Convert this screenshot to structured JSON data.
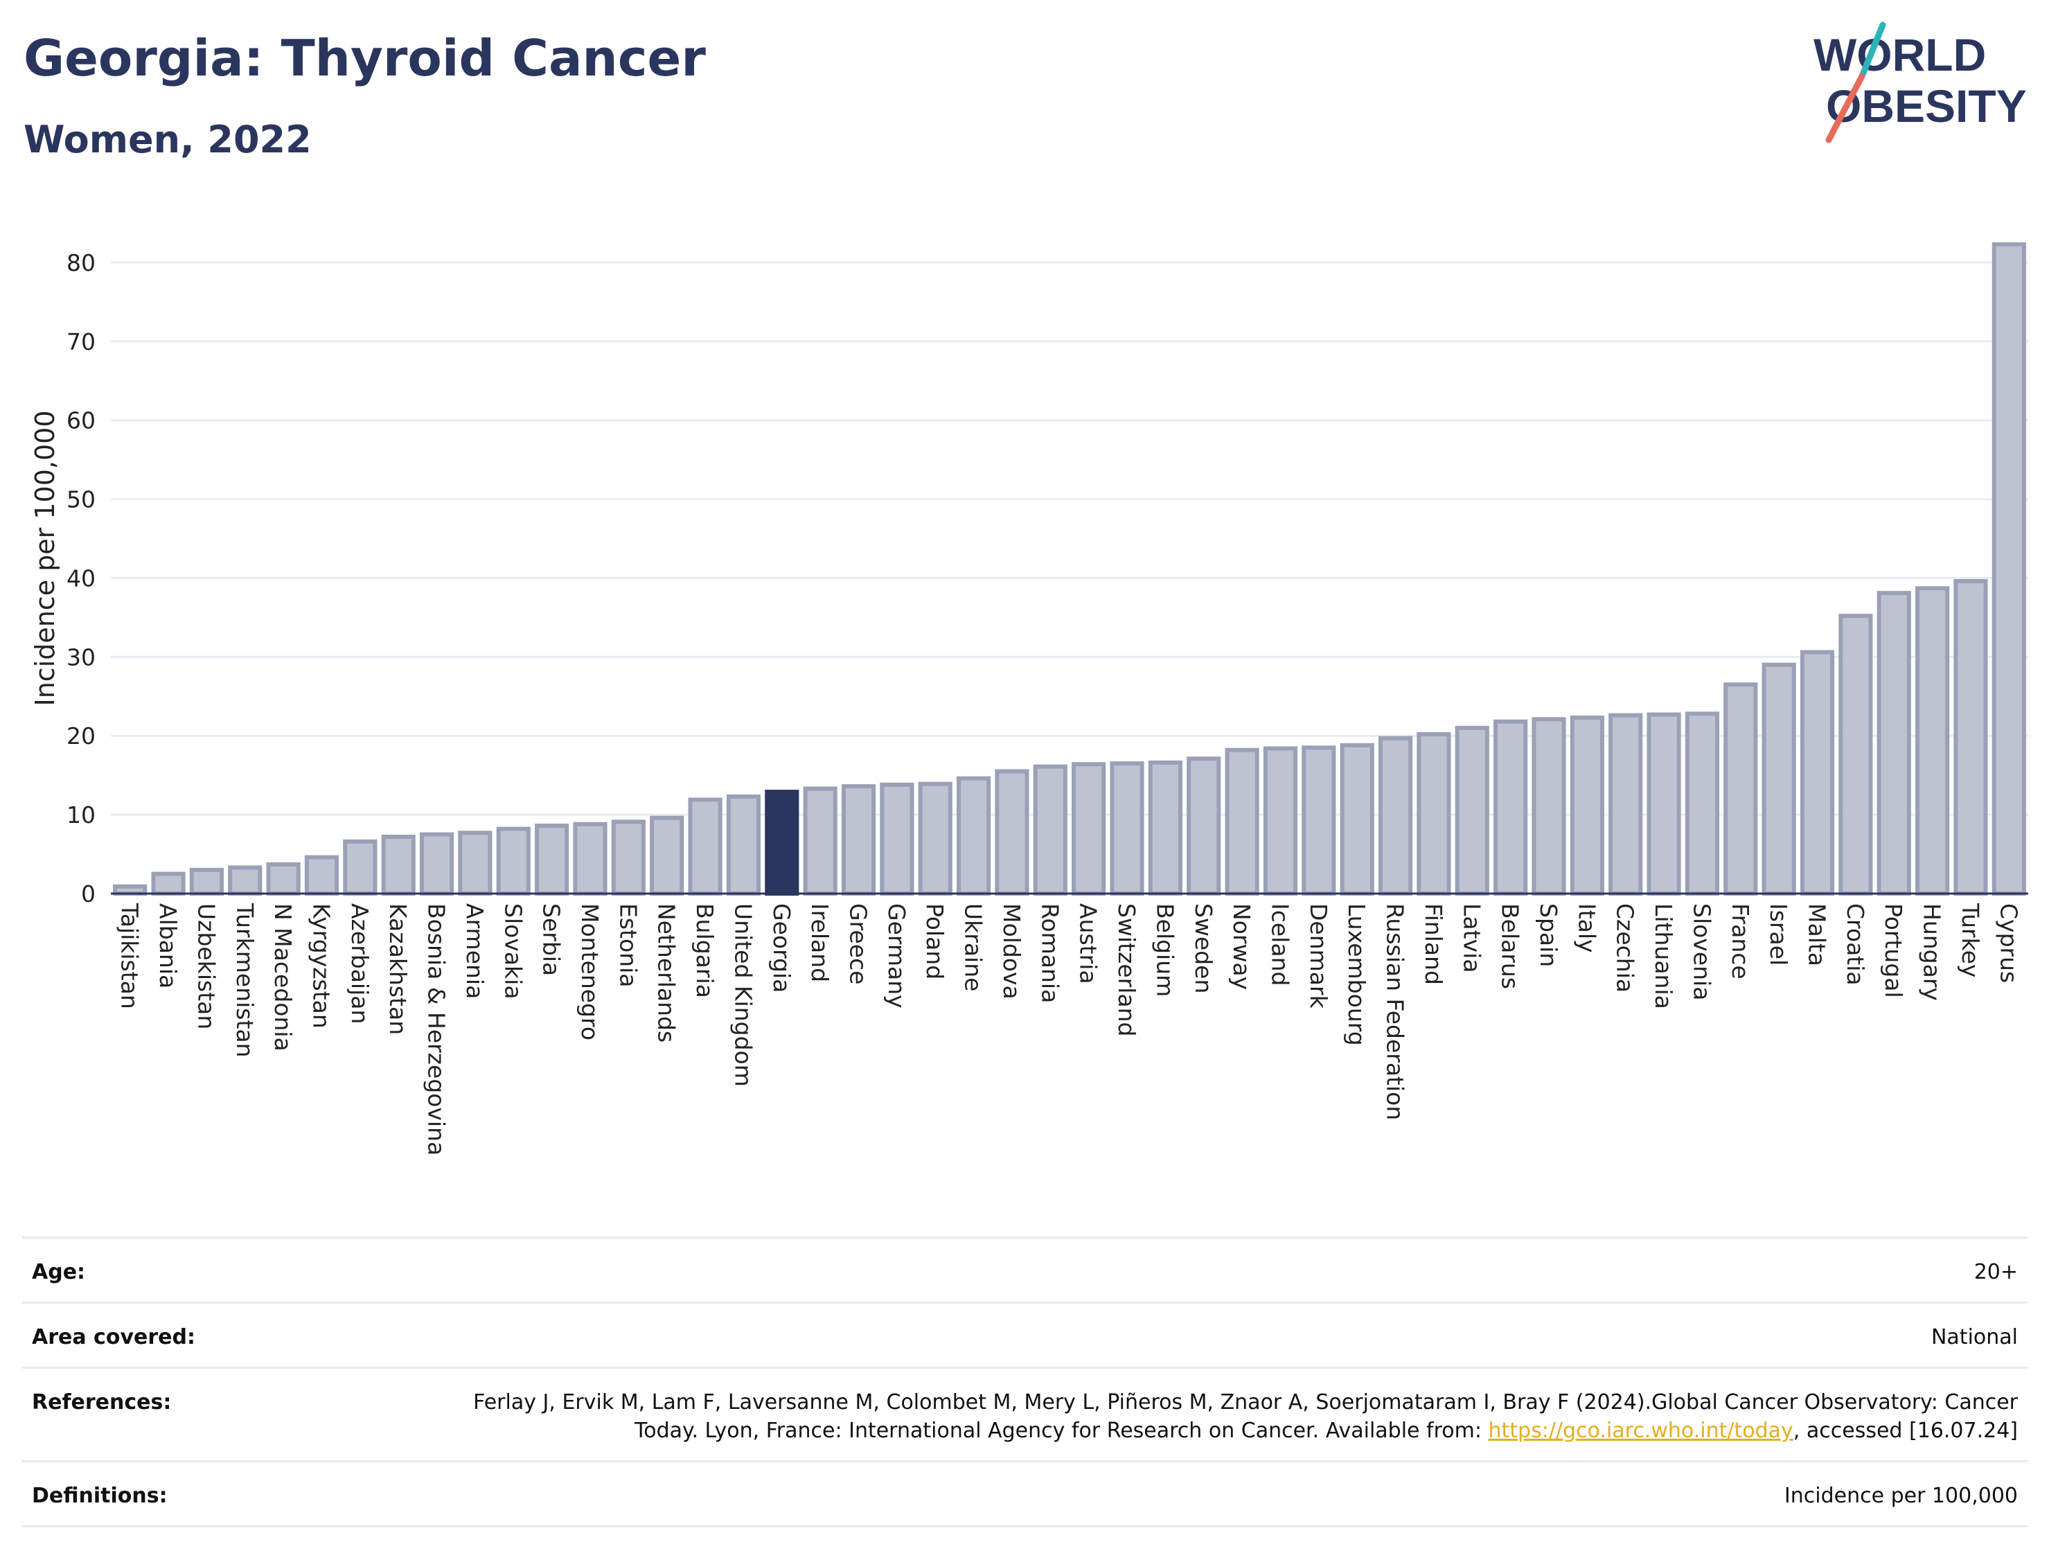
{
  "header": {
    "title": "Georgia: Thyroid Cancer",
    "subtitle": "Women, 2022",
    "logo_line1": "WORLD",
    "logo_line2": "OBESITY"
  },
  "colors": {
    "title": "#2b365f",
    "bar": "#bfc3d1",
    "bar_outline": "#9aa0b6",
    "highlight": "#2b365f",
    "logo_teal": "#2bb5b8",
    "logo_coral": "#e86a5c",
    "link": "#e3ae1f"
  },
  "chart_data": {
    "type": "bar",
    "ylabel": "Incidence per 100,000",
    "xlabel": "",
    "ylim": [
      0,
      85
    ],
    "yticks": [
      0,
      10,
      20,
      30,
      40,
      50,
      60,
      70,
      80
    ],
    "grid": true,
    "highlight_category": "Georgia",
    "categories": [
      "Tajikistan",
      "Albania",
      "Uzbekistan",
      "Turkmenistan",
      "N Macedonia",
      "Kyrgyzstan",
      "Azerbaijan",
      "Kazakhstan",
      "Bosnia & Herzegovina",
      "Armenia",
      "Slovakia",
      "Serbia",
      "Montenegro",
      "Estonia",
      "Netherlands",
      "Bulgaria",
      "United Kingdom",
      "Georgia",
      "Ireland",
      "Greece",
      "Germany",
      "Poland",
      "Ukraine",
      "Moldova",
      "Romania",
      "Austria",
      "Switzerland",
      "Belgium",
      "Sweden",
      "Norway",
      "Iceland",
      "Denmark",
      "Luxembourg",
      "Russian Federation",
      "Finland",
      "Latvia",
      "Belarus",
      "Spain",
      "Italy",
      "Czechia",
      "Lithuania",
      "Slovenia",
      "France",
      "Israel",
      "Malta",
      "Croatia",
      "Portugal",
      "Hungary",
      "Turkey",
      "Cyprus"
    ],
    "values": [
      0.9,
      2.5,
      3.0,
      3.3,
      3.7,
      4.6,
      6.6,
      7.2,
      7.5,
      7.7,
      8.2,
      8.6,
      8.8,
      9.1,
      9.6,
      11.9,
      12.3,
      12.9,
      13.3,
      13.6,
      13.8,
      13.9,
      14.6,
      15.5,
      16.1,
      16.4,
      16.5,
      16.6,
      17.1,
      18.2,
      18.4,
      18.5,
      18.8,
      19.7,
      20.2,
      21.0,
      21.8,
      22.1,
      22.3,
      22.6,
      22.7,
      22.8,
      26.5,
      29.0,
      30.6,
      35.2,
      38.1,
      38.7,
      39.6,
      82.3
    ]
  },
  "info": {
    "age_label": "Age:",
    "age_value": "20+",
    "area_label": "Area covered:",
    "area_value": "National",
    "references_label": "References:",
    "references_text": "Ferlay J, Ervik M, Lam F, Laversanne M, Colombet M, Mery L, Piñeros M, Znaor A, Soerjomataram I, Bray F (2024).Global Cancer Observatory: Cancer Today. Lyon, France: International Agency for Research on Cancer. Available from:",
    "references_link": "https://gco.iarc.who.int/today",
    "references_suffix": ", accessed [16.07.24]",
    "definitions_label": "Definitions:",
    "definitions_value": "Incidence per 100,000"
  }
}
